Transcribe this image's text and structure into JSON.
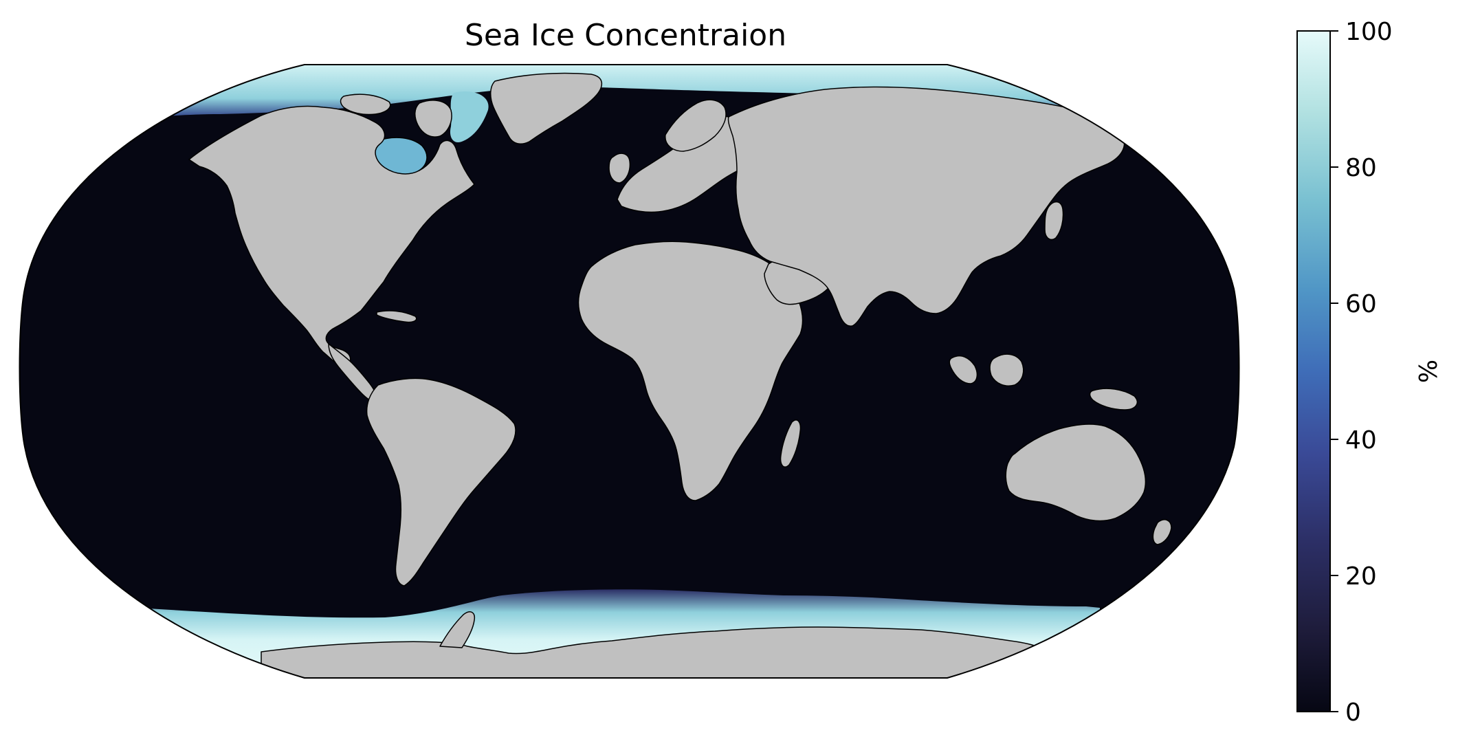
{
  "title": "Sea Ice Concentraion",
  "colorbar": {
    "label": "%",
    "ticks": [
      0,
      20,
      40,
      60,
      80,
      100
    ],
    "tick_labels": [
      "0",
      "20",
      "40",
      "60",
      "80",
      "100"
    ],
    "range": [
      0,
      100
    ],
    "colormap_stops": [
      "#060713",
      "#1e1c3b",
      "#2c2f66",
      "#3a4a97",
      "#3f6db8",
      "#5096c6",
      "#79c0d1",
      "#b1e1e1",
      "#e6fafa"
    ]
  },
  "map": {
    "projection": "Robinson",
    "ocean_color": "#060713",
    "land_color": "#c0c0c0",
    "ice_high_color": "#d6f4f5",
    "ice_mid_color": "#6fb7d4",
    "ice_edge_color": "#3a5aa5",
    "coastline_color": "#000000"
  }
}
